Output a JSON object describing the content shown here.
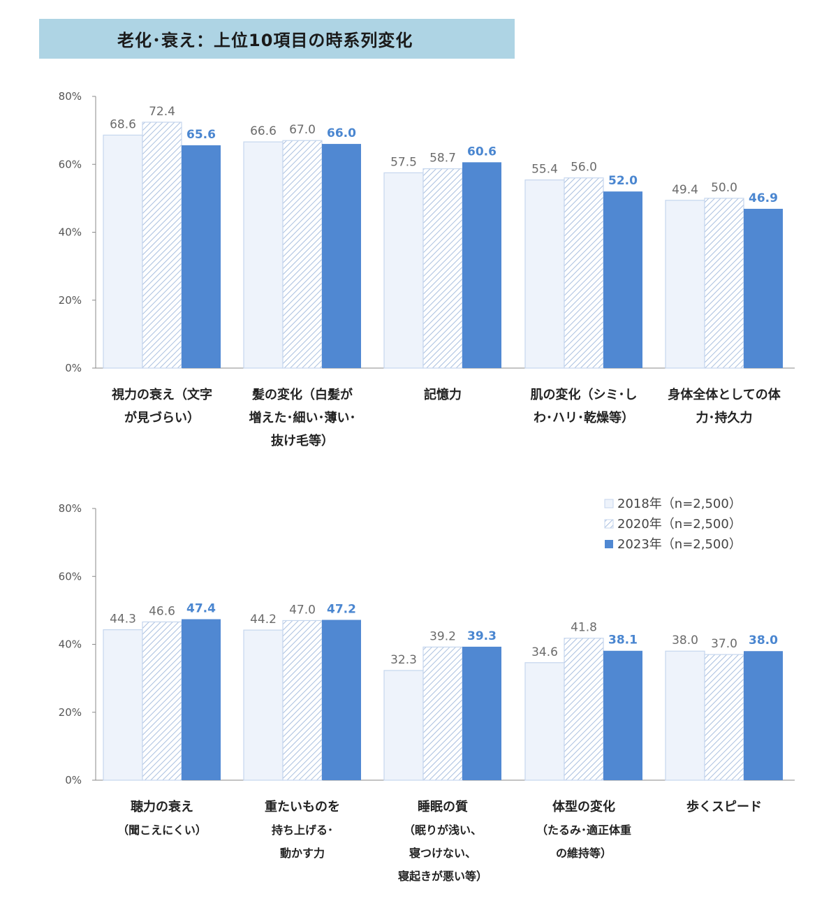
{
  "title": "老化･衰え：上位10項目の時系列変化",
  "colors": {
    "s2018_fill": "#eef3fb",
    "s2018_stroke": "#c5d6ee",
    "s2020_fill": "#ffffff",
    "s2020_hatch": "#a9bfdf",
    "s2023_fill": "#5088d2",
    "axis": "#888888",
    "value_highlight": "#4a86d0"
  },
  "legend": [
    {
      "key": "s2018",
      "label": "2018年（n=2,500）"
    },
    {
      "key": "s2020",
      "label": "2020年（n=2,500）"
    },
    {
      "key": "s2023",
      "label": "2023年（n=2,500）"
    }
  ],
  "chart_data": [
    {
      "type": "bar",
      "ylim": [
        0,
        80
      ],
      "yticks": [
        "0%",
        "20%",
        "40%",
        "60%",
        "80%"
      ],
      "categories": [
        [
          "視力の衰え（文字",
          "が見づらい）"
        ],
        [
          "髪の変化（白髪が",
          "増えた･細い･薄い･",
          "抜け毛等）"
        ],
        [
          "記憶力"
        ],
        [
          "肌の変化（シミ･し",
          "わ･ハリ･乾燥等）"
        ],
        [
          "身体全体としての体",
          "力･持久力"
        ]
      ],
      "series": [
        {
          "name": "2018年（n=2,500）",
          "values": [
            68.6,
            66.6,
            57.5,
            55.4,
            49.4
          ],
          "labels": [
            "68.6",
            "66.6",
            "57.5",
            "55.4",
            "49.4"
          ]
        },
        {
          "name": "2020年（n=2,500）",
          "values": [
            72.4,
            67.0,
            58.7,
            56.0,
            50.0
          ],
          "labels": [
            "72.4",
            "67.0",
            "58.7",
            "56.0",
            "50.0"
          ]
        },
        {
          "name": "2023年（n=2,500）",
          "values": [
            65.6,
            66.0,
            60.6,
            52.0,
            46.9
          ],
          "labels": [
            "65.6",
            "66.0",
            "60.6",
            "52.0",
            "46.9"
          ]
        }
      ]
    },
    {
      "type": "bar",
      "ylim": [
        0,
        80
      ],
      "yticks": [
        "0%",
        "20%",
        "40%",
        "60%",
        "80%"
      ],
      "categories": [
        [
          "聴力の衰え",
          "（聞こえにくい）"
        ],
        [
          "重たいものを",
          "持ち上げる･",
          "動かす力"
        ],
        [
          "睡眠の質",
          "（眠りが浅い、",
          "寝つけない、",
          "寝起きが悪い等）"
        ],
        [
          "体型の変化",
          "（たるみ･適正体重",
          "の維持等）"
        ],
        [
          "歩くスピード"
        ]
      ],
      "series": [
        {
          "name": "2018年（n=2,500）",
          "values": [
            44.3,
            44.2,
            32.3,
            34.6,
            38.0
          ],
          "labels": [
            "44.3",
            "44.2",
            "32.3",
            "34.6",
            "38.0"
          ]
        },
        {
          "name": "2020年（n=2,500）",
          "values": [
            46.6,
            47.0,
            39.2,
            41.8,
            37.0
          ],
          "labels": [
            "46.6",
            "47.0",
            "39.2",
            "41.8",
            "37.0"
          ]
        },
        {
          "name": "2023年（n=2,500）",
          "values": [
            47.4,
            47.2,
            39.3,
            38.1,
            38.0
          ],
          "labels": [
            "47.4",
            "47.2",
            "39.3",
            "38.1",
            "38.0"
          ]
        }
      ]
    }
  ]
}
